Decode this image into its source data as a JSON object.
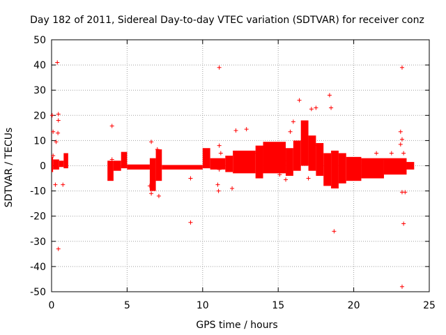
{
  "chart_data": {
    "type": "scatter",
    "title": "Day 182 of 2011, Sidereal Day-to-day VTEC variation (SDTVAR) for receiver conz",
    "xlabel": "GPS time / hours",
    "ylabel": "SDTVAR / TECUs",
    "xlim": [
      0,
      25
    ],
    "ylim": [
      -50,
      50
    ],
    "xticks": [
      0,
      5,
      10,
      15,
      20,
      25
    ],
    "yticks": [
      -50,
      -40,
      -30,
      -20,
      -10,
      0,
      10,
      20,
      30,
      40,
      50
    ],
    "grid": true,
    "marker": "+",
    "colors": {
      "series": "#ff0000",
      "grid": "#a0a0a0",
      "axis": "#000000"
    },
    "series": [
      {
        "name": "SDTVAR",
        "dense_bands": [
          {
            "x": [
              0.0,
              0.1
            ],
            "ymin": -2.5,
            "ymax": 3.5
          },
          {
            "x": [
              0.1,
              0.5
            ],
            "ymin": -1.5,
            "ymax": 2.5
          },
          {
            "x": [
              0.5,
              0.8
            ],
            "ymin": -0.5,
            "ymax": 2.0
          },
          {
            "x": [
              0.8,
              1.1
            ],
            "ymin": -1.0,
            "ymax": 5.0
          },
          {
            "x": [
              3.7,
              4.1
            ],
            "ymin": -6.0,
            "ymax": 2.0
          },
          {
            "x": [
              4.1,
              4.6
            ],
            "ymin": -2.0,
            "ymax": 2.0
          },
          {
            "x": [
              4.6,
              5.0
            ],
            "ymin": -1.0,
            "ymax": 5.5
          },
          {
            "x": [
              5.0,
              6.5
            ],
            "ymin": -1.5,
            "ymax": 0.5
          },
          {
            "x": [
              6.5,
              6.9
            ],
            "ymin": -10.0,
            "ymax": 3.0
          },
          {
            "x": [
              6.9,
              7.3
            ],
            "ymin": -6.0,
            "ymax": 6.5
          },
          {
            "x": [
              7.3,
              10.0
            ],
            "ymin": -1.5,
            "ymax": 0.3
          },
          {
            "x": [
              10.0,
              10.5
            ],
            "ymin": -1.0,
            "ymax": 7.0
          },
          {
            "x": [
              10.5,
              11.5
            ],
            "ymin": -1.5,
            "ymax": 3.0
          },
          {
            "x": [
              11.5,
              12.0
            ],
            "ymin": -2.5,
            "ymax": 4.0
          },
          {
            "x": [
              12.0,
              13.5
            ],
            "ymin": -3.0,
            "ymax": 6.0
          },
          {
            "x": [
              13.5,
              14.0
            ],
            "ymin": -5.0,
            "ymax": 8.0
          },
          {
            "x": [
              14.0,
              15.5
            ],
            "ymin": -3.0,
            "ymax": 9.5
          },
          {
            "x": [
              15.5,
              16.0
            ],
            "ymin": -4.0,
            "ymax": 7.0
          },
          {
            "x": [
              16.0,
              16.5
            ],
            "ymin": -2.0,
            "ymax": 10.0
          },
          {
            "x": [
              16.5,
              17.0
            ],
            "ymin": 0.0,
            "ymax": 18.0
          },
          {
            "x": [
              17.0,
              17.5
            ],
            "ymin": -2.0,
            "ymax": 12.0
          },
          {
            "x": [
              17.5,
              18.0
            ],
            "ymin": -4.0,
            "ymax": 9.0
          },
          {
            "x": [
              18.0,
              18.5
            ],
            "ymin": -8.0,
            "ymax": 5.0
          },
          {
            "x": [
              18.5,
              19.0
            ],
            "ymin": -9.0,
            "ymax": 6.0
          },
          {
            "x": [
              19.0,
              19.5
            ],
            "ymin": -7.0,
            "ymax": 5.0
          },
          {
            "x": [
              19.5,
              20.5
            ],
            "ymin": -6.0,
            "ymax": 3.5
          },
          {
            "x": [
              20.5,
              22.0
            ],
            "ymin": -5.0,
            "ymax": 3.0
          },
          {
            "x": [
              22.0,
              23.5
            ],
            "ymin": -3.5,
            "ymax": 3.0
          },
          {
            "x": [
              23.5,
              24.0
            ],
            "ymin": -1.5,
            "ymax": 1.5
          }
        ],
        "outliers": [
          {
            "x": 0.04,
            "y": 20.0
          },
          {
            "x": 0.1,
            "y": 13.5
          },
          {
            "x": 0.1,
            "y": 4.0
          },
          {
            "x": 0.25,
            "y": -7.5
          },
          {
            "x": 0.3,
            "y": 9.5
          },
          {
            "x": 0.38,
            "y": 41.0
          },
          {
            "x": 0.42,
            "y": 13.0
          },
          {
            "x": 0.45,
            "y": 20.5
          },
          {
            "x": 0.45,
            "y": 18.0
          },
          {
            "x": 0.45,
            "y": -33.0
          },
          {
            "x": 0.75,
            "y": -7.5
          },
          {
            "x": 4.0,
            "y": 2.5
          },
          {
            "x": 4.0,
            "y": 15.8
          },
          {
            "x": 6.5,
            "y": -8.0
          },
          {
            "x": 6.6,
            "y": -11.0
          },
          {
            "x": 6.6,
            "y": 9.5
          },
          {
            "x": 7.0,
            "y": 6.5
          },
          {
            "x": 7.1,
            "y": -12.0
          },
          {
            "x": 9.2,
            "y": -22.5
          },
          {
            "x": 9.2,
            "y": -5.0
          },
          {
            "x": 10.2,
            "y": 2.0
          },
          {
            "x": 11.0,
            "y": -7.5
          },
          {
            "x": 11.05,
            "y": -10.0
          },
          {
            "x": 11.1,
            "y": 39.0
          },
          {
            "x": 11.1,
            "y": 8.0
          },
          {
            "x": 11.1,
            "y": -1.5
          },
          {
            "x": 11.2,
            "y": 5.0
          },
          {
            "x": 11.95,
            "y": -9.0
          },
          {
            "x": 12.2,
            "y": 14.0
          },
          {
            "x": 12.9,
            "y": 14.5
          },
          {
            "x": 13.4,
            "y": 5.0
          },
          {
            "x": 15.1,
            "y": -3.5
          },
          {
            "x": 15.5,
            "y": -5.5
          },
          {
            "x": 15.6,
            "y": 2.0
          },
          {
            "x": 15.8,
            "y": 13.5
          },
          {
            "x": 16.0,
            "y": 17.5
          },
          {
            "x": 16.4,
            "y": 26.0
          },
          {
            "x": 16.8,
            "y": 16.0
          },
          {
            "x": 17.0,
            "y": -5.0
          },
          {
            "x": 17.2,
            "y": 22.5
          },
          {
            "x": 17.3,
            "y": -1.0
          },
          {
            "x": 17.5,
            "y": 23.0
          },
          {
            "x": 17.6,
            "y": 8.0
          },
          {
            "x": 18.4,
            "y": 28.0
          },
          {
            "x": 18.5,
            "y": 23.0
          },
          {
            "x": 18.7,
            "y": -26.0
          },
          {
            "x": 19.3,
            "y": -6.0
          },
          {
            "x": 21.5,
            "y": 5.0
          },
          {
            "x": 22.5,
            "y": 5.0
          },
          {
            "x": 23.1,
            "y": 13.5
          },
          {
            "x": 23.1,
            "y": 8.5
          },
          {
            "x": 23.2,
            "y": 10.5
          },
          {
            "x": 23.2,
            "y": 39.0
          },
          {
            "x": 23.2,
            "y": -10.5
          },
          {
            "x": 23.2,
            "y": -48.0
          },
          {
            "x": 23.3,
            "y": 5.0
          },
          {
            "x": 23.3,
            "y": -23.0
          },
          {
            "x": 23.4,
            "y": -10.5
          }
        ]
      }
    ]
  }
}
